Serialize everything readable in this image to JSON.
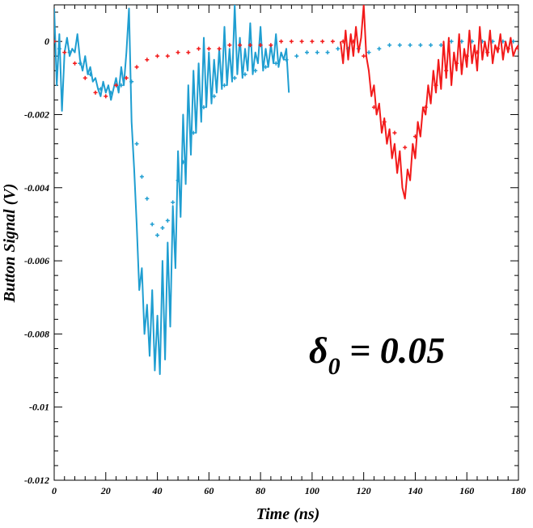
{
  "chart_data": {
    "type": "line",
    "title": "",
    "xlabel": "Time (ns)",
    "ylabel": "Button Signal (V)",
    "xlim": [
      0,
      180
    ],
    "ylim": [
      -0.012,
      0.001
    ],
    "x_ticks": [
      0,
      20,
      40,
      60,
      80,
      100,
      120,
      140,
      160,
      180
    ],
    "x_tick_labels": [
      "0",
      "20",
      "40",
      "60",
      "80",
      "100",
      "120",
      "140",
      "160",
      "180"
    ],
    "y_ticks": [
      0,
      -0.002,
      -0.004,
      -0.006,
      -0.008,
      -0.01,
      -0.012
    ],
    "y_tick_labels": [
      "0",
      "-0.002",
      "-0.004",
      "-0.006",
      "-0.008",
      "-0.01",
      "-0.012"
    ],
    "grid": false,
    "legend": "none",
    "annotation": {
      "symbol": "δ",
      "subscript": "0",
      "text": " = 0.05"
    },
    "series": [
      {
        "style": "line",
        "color": "#1f9ed1",
        "x": [
          0,
          1,
          2,
          3,
          4,
          5,
          6,
          7,
          8,
          9,
          10,
          11,
          12,
          13,
          14,
          15,
          16,
          17,
          18,
          19,
          20,
          21,
          22,
          23,
          24,
          25,
          26,
          27,
          28,
          29,
          30,
          31,
          32,
          33,
          34,
          35,
          36,
          37,
          38,
          39,
          40,
          41,
          42,
          43,
          44,
          45,
          46,
          47,
          48,
          49,
          50,
          51,
          52,
          53,
          54,
          55,
          56,
          57,
          58,
          59,
          60,
          61,
          62,
          63,
          64,
          65,
          66,
          67,
          68,
          69,
          70,
          71,
          72,
          73,
          74,
          75,
          76,
          77,
          78,
          79,
          80,
          81,
          82,
          83,
          84,
          85,
          86,
          87,
          88,
          89,
          90,
          91
        ],
        "y": [
          0.0009,
          -0.0012,
          0.0002,
          -0.0019,
          -0.0003,
          0.0001,
          -0.0004,
          -0.0002,
          -0.0003,
          0.0002,
          -0.0005,
          -0.0008,
          -0.0004,
          -0.0009,
          -0.0007,
          -0.0011,
          -0.001,
          -0.0013,
          -0.0015,
          -0.0011,
          -0.0014,
          -0.0012,
          -0.0016,
          -0.0013,
          -0.001,
          -0.0014,
          -0.0007,
          -0.0012,
          -0.0003,
          0.0009,
          -0.0022,
          -0.0035,
          -0.005,
          -0.0068,
          -0.0062,
          -0.008,
          -0.0072,
          -0.0086,
          -0.0068,
          -0.009,
          -0.0075,
          -0.0091,
          -0.006,
          -0.0087,
          -0.0055,
          -0.0078,
          -0.0045,
          -0.0062,
          -0.003,
          -0.0048,
          -0.002,
          -0.0039,
          -0.0012,
          -0.0031,
          -0.0008,
          -0.0025,
          -0.0006,
          -0.0022,
          0.0001,
          -0.0018,
          -0.0003,
          -0.0017,
          -0.0005,
          -0.0014,
          -0.0002,
          -0.0013,
          0.0004,
          -0.0012,
          -0.0002,
          -0.0011,
          0.001,
          -0.0009,
          0.0001,
          -0.001,
          -0.0002,
          -0.0008,
          0.0005,
          -0.0009,
          -0.0003,
          -0.0006,
          0.0004,
          -0.0008,
          -0.0002,
          -0.0007,
          -0.0001,
          -0.0006,
          0.0002,
          -0.0007,
          -0.0003,
          -0.0005,
          -0.0002,
          -0.0014
        ]
      },
      {
        "style": "markers",
        "color": "#1f9ed1",
        "x": [
          2,
          6,
          10,
          14,
          18,
          22,
          26,
          30,
          32,
          34,
          36,
          38,
          40,
          42,
          44,
          46,
          48,
          50,
          54,
          58,
          62,
          66,
          70,
          74,
          78,
          82,
          86,
          90,
          94,
          98,
          102,
          106,
          110,
          114,
          118,
          122,
          126,
          130,
          134,
          138,
          142,
          146,
          150,
          154,
          158,
          162,
          166,
          170,
          174,
          178
        ],
        "y": [
          -0.0002,
          -0.0003,
          -0.0006,
          -0.0009,
          -0.0013,
          -0.0014,
          -0.0012,
          -0.0011,
          -0.0028,
          -0.0037,
          -0.0043,
          -0.005,
          -0.0053,
          -0.0051,
          -0.0049,
          -0.0044,
          -0.0038,
          -0.0033,
          -0.0025,
          -0.0018,
          -0.0015,
          -0.0012,
          -0.001,
          -0.0009,
          -0.0008,
          -0.0007,
          -0.0006,
          -0.0005,
          -0.0004,
          -0.0003,
          -0.0003,
          -0.0003,
          -0.0002,
          -0.0002,
          -0.0002,
          -0.0003,
          -0.0002,
          -0.0001,
          -0.0001,
          -0.0001,
          -0.0001,
          -0.0001,
          -0.0001,
          0.0,
          0.0,
          0.0,
          0.0,
          0.0,
          0.0,
          0.0
        ]
      },
      {
        "style": "markers",
        "color": "#f21a1a",
        "x": [
          0,
          4,
          8,
          12,
          16,
          20,
          24,
          28,
          32,
          36,
          40,
          44,
          48,
          52,
          56,
          60,
          64,
          68,
          72,
          76,
          80,
          84,
          88,
          92,
          96,
          100,
          104,
          108,
          112,
          116,
          120,
          124,
          128,
          132,
          136,
          140,
          144,
          148,
          152,
          156,
          160,
          164,
          168,
          172,
          176,
          180
        ],
        "y": [
          0.0,
          -0.0003,
          -0.0006,
          -0.001,
          -0.0014,
          -0.0015,
          -0.0012,
          -0.001,
          -0.0007,
          -0.0005,
          -0.0004,
          -0.0004,
          -0.0003,
          -0.0003,
          -0.0002,
          -0.0002,
          -0.0002,
          -0.0001,
          -0.0001,
          -0.0001,
          -0.0001,
          -0.0001,
          0.0,
          0.0,
          0.0,
          0.0,
          0.0,
          0.0,
          0.0,
          0.0,
          -0.0004,
          -0.0018,
          -0.0022,
          -0.0025,
          -0.0029,
          -0.0026,
          -0.0018,
          -0.0012,
          -0.0008,
          -0.0006,
          -0.0004,
          -0.0003,
          -0.0003,
          -0.0002,
          -0.0002,
          -0.0002
        ]
      },
      {
        "style": "line",
        "color": "#f21a1a",
        "x": [
          111,
          112,
          113,
          114,
          115,
          116,
          117,
          118,
          119,
          120,
          121,
          122,
          123,
          124,
          125,
          126,
          127,
          128,
          129,
          130,
          131,
          132,
          133,
          134,
          135,
          136,
          137,
          138,
          139,
          140,
          141,
          142,
          143,
          144,
          145,
          146,
          147,
          148,
          149,
          150,
          151,
          152,
          153,
          154,
          155,
          156,
          157,
          158,
          159,
          160,
          161,
          162,
          163,
          164,
          165,
          166,
          167,
          168,
          169,
          170,
          171,
          172,
          173,
          174,
          175,
          176,
          177,
          178,
          179,
          180
        ],
        "y": [
          0.0,
          -0.0006,
          0.0003,
          -0.0005,
          0.0002,
          -0.0004,
          0.0004,
          -0.0003,
          0.0001,
          0.001,
          -0.0004,
          -0.0008,
          -0.0015,
          -0.0012,
          -0.002,
          -0.0017,
          -0.0025,
          -0.0021,
          -0.0028,
          -0.0024,
          -0.0032,
          -0.0028,
          -0.0036,
          -0.003,
          -0.004,
          -0.0043,
          -0.0035,
          -0.0038,
          -0.0028,
          -0.0032,
          -0.0022,
          -0.0026,
          -0.0018,
          -0.002,
          -0.0012,
          -0.0017,
          -0.0008,
          -0.0014,
          -0.0005,
          -0.0013,
          0.0,
          -0.001,
          0.0001,
          -0.0012,
          -0.0003,
          -0.0008,
          0.0002,
          -0.0009,
          -0.0002,
          -0.0007,
          0.0003,
          -0.0006,
          -0.0001,
          -0.0008,
          0.0004,
          -0.0005,
          0.0,
          -0.0004,
          0.0003,
          -0.0006,
          -0.0001,
          -0.0003,
          0.0002,
          -0.0005,
          0.0,
          -0.0003,
          0.0001,
          -0.0004,
          -0.0002,
          -0.0001
        ]
      }
    ]
  }
}
